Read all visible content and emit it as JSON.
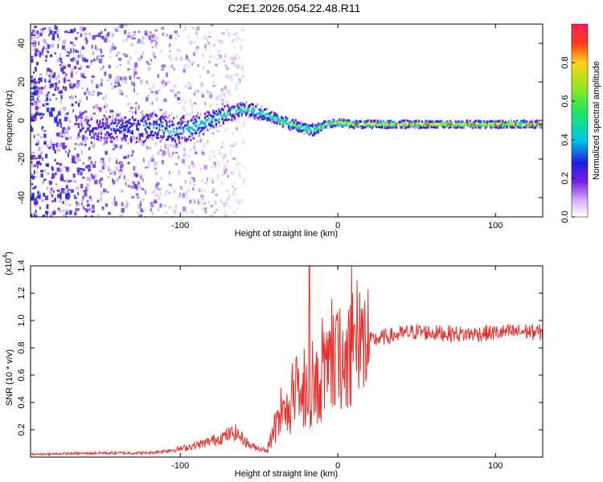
{
  "page": {
    "title": "C2E1.2026.054.22.48.R11"
  },
  "colors": {
    "snr_line": "#e8302c",
    "ridge_core": "#e8302c",
    "ridge_green": "#2fe07a",
    "ridge_cyan": "#1fb8e8",
    "noise_purple": "#6a1fd8",
    "noise_light": "#c9a8f0"
  },
  "chart_data": [
    {
      "id": "spectrogram",
      "type": "heatmap",
      "title": "C2E1.2026.054.22.48.R11",
      "xlabel": "Height of straight line (km)",
      "ylabel": "Frequency (Hz)",
      "xlim": [
        -195,
        130
      ],
      "ylim": [
        -50,
        50
      ],
      "xticks": [
        -100,
        0,
        100
      ],
      "yticks": [
        -40,
        -20,
        0,
        20,
        40
      ],
      "colorbar": {
        "label": "Normalized spectral amplitude",
        "range": [
          0,
          1
        ],
        "ticks": [
          "0.0",
          "0.2",
          "0.4",
          "0.6",
          "0.8"
        ],
        "tick_values": [
          0.0,
          0.2,
          0.4,
          0.6,
          0.8
        ]
      },
      "ridge": {
        "x": [
          -160,
          -140,
          -120,
          -105,
          -95,
          -85,
          -75,
          -65,
          -58,
          -50,
          -40,
          -30,
          -22,
          -15,
          -8,
          0,
          10,
          20,
          40,
          60,
          80,
          100,
          130
        ],
        "y": [
          -5,
          -4,
          -3,
          -6,
          -4,
          -1,
          2,
          5,
          6,
          4,
          1,
          -2,
          -4,
          -5,
          -2,
          -1,
          -2,
          -2,
          -2,
          -2,
          -2,
          -2,
          -2
        ],
        "halfwidth": [
          8,
          8,
          9,
          8,
          7,
          6,
          5,
          4,
          4,
          4,
          3,
          3,
          3,
          3,
          2,
          2,
          2,
          2,
          2,
          2,
          2,
          2,
          2
        ],
        "strength": [
          0.25,
          0.3,
          0.35,
          0.45,
          0.45,
          0.5,
          0.5,
          0.55,
          0.55,
          0.55,
          0.6,
          0.65,
          0.65,
          0.7,
          0.75,
          0.85,
          0.9,
          0.9,
          0.95,
          0.95,
          0.95,
          0.95,
          0.95
        ]
      },
      "noise_region": {
        "x_from": -195,
        "x_to": -60
      }
    },
    {
      "id": "snr",
      "type": "line",
      "xlabel": "Height of straight line (km)",
      "ylabel": "SNR (10 * v/v)",
      "y_multiplier": "(x10",
      "y_exponent": "4",
      "y_multiplier_close": ")",
      "xlim": [
        -195,
        130
      ],
      "ylim": [
        0,
        1.4
      ],
      "xticks": [
        -100,
        0,
        100
      ],
      "yticks": [
        "0.2",
        "0.4",
        "0.6",
        "0.8",
        "1.0",
        "1.2",
        "1.4"
      ],
      "ytick_values": [
        0.2,
        0.4,
        0.6,
        0.8,
        1.0,
        1.2,
        1.4
      ],
      "envelope": {
        "x": [
          -195,
          -150,
          -120,
          -100,
          -85,
          -75,
          -65,
          -55,
          -45,
          -40,
          -35,
          -30,
          -25,
          -20,
          -15,
          -10,
          -5,
          0,
          5,
          10,
          20,
          30,
          40,
          50,
          60,
          80,
          100,
          120,
          130
        ],
        "y": [
          0.02,
          0.03,
          0.03,
          0.06,
          0.1,
          0.14,
          0.18,
          0.08,
          0.05,
          0.2,
          0.3,
          0.35,
          0.4,
          0.45,
          0.5,
          0.55,
          0.62,
          0.7,
          0.74,
          0.78,
          0.85,
          0.88,
          0.9,
          0.92,
          0.91,
          0.9,
          0.91,
          0.92,
          0.91
        ]
      },
      "spike": {
        "x": -18,
        "y": 1.4
      }
    }
  ]
}
